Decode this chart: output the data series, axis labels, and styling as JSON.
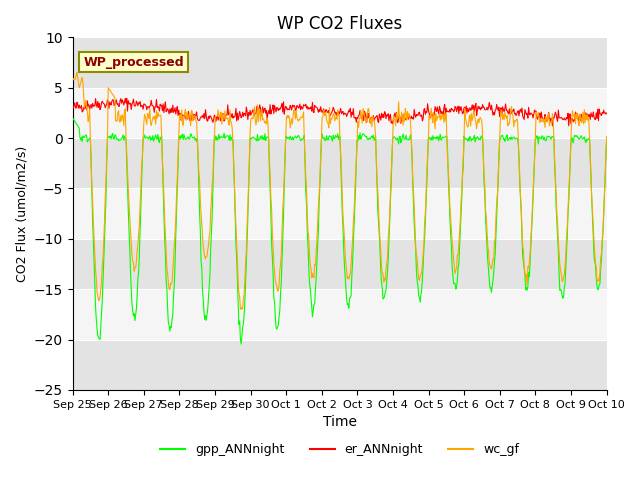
{
  "title": "WP CO2 Fluxes",
  "xlabel": "Time",
  "ylabel": "CO2 Flux (μmol/m2/s)",
  "ylabel_display": "CO2 Flux (umol/m2/s)",
  "ylim": [
    -25,
    10
  ],
  "yticks": [
    -25,
    -20,
    -15,
    -10,
    -5,
    0,
    5,
    10
  ],
  "xtick_labels": [
    "Sep 25",
    "Sep 26",
    "Sep 27",
    "Sep 28",
    "Sep 29",
    "Sep 30",
    "Oct 1",
    "Oct 2",
    "Oct 3",
    "Oct 4",
    "Oct 5",
    "Oct 6",
    "Oct 7",
    "Oct 8",
    "Oct 9",
    "Oct 10"
  ],
  "n_days": 15,
  "pts_per_day": 48,
  "gpp_color": "#00ff00",
  "er_color": "#ff0000",
  "wc_color": "#ffa500",
  "label_text": "WP_processed",
  "label_text_color": "#8b0000",
  "label_bg_color": "#ffffcc",
  "label_edge_color": "#8b8b00",
  "band_color": "#d3d3d3",
  "legend_labels": [
    "gpp_ANNnight",
    "er_ANNnight",
    "wc_gf"
  ],
  "bg_white": "#ffffff",
  "bg_gray": "#e0e0e0"
}
